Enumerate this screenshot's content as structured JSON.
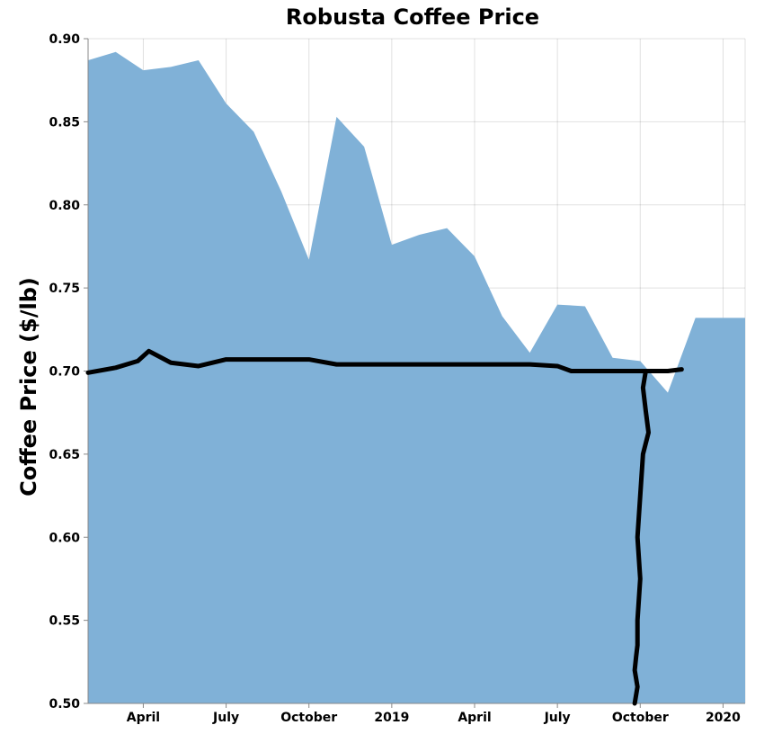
{
  "chart_data": {
    "type": "area",
    "title": "Robusta Coffee Price",
    "xlabel": "",
    "ylabel": "Coffee Price ($/lb)",
    "ylim": [
      0.5,
      0.9
    ],
    "xlim": [
      0,
      23.8
    ],
    "x_tick_labels": [
      {
        "x": 2,
        "label": "April"
      },
      {
        "x": 5,
        "label": "July"
      },
      {
        "x": 8,
        "label": "October"
      },
      {
        "x": 11,
        "label": "2019"
      },
      {
        "x": 14,
        "label": "April"
      },
      {
        "x": 17,
        "label": "July"
      },
      {
        "x": 20,
        "label": "October"
      },
      {
        "x": 23,
        "label": "2020"
      }
    ],
    "y_ticks": [
      0.5,
      0.55,
      0.6,
      0.65,
      0.7,
      0.75,
      0.8,
      0.85,
      0.9
    ],
    "area_color": "#80b1d7",
    "annotation_color": "#000000",
    "series": [
      {
        "name": "Robusta Coffee Price",
        "x": [
          0,
          1,
          2,
          3,
          4,
          5,
          6,
          7,
          8,
          9,
          10,
          11,
          12,
          13,
          14,
          15,
          16,
          17,
          18,
          19,
          20,
          21,
          22,
          23
        ],
        "values": [
          0.887,
          0.892,
          0.881,
          0.883,
          0.887,
          0.861,
          0.844,
          0.808,
          0.767,
          0.853,
          0.835,
          0.776,
          0.782,
          0.786,
          0.769,
          0.733,
          0.711,
          0.74,
          0.739,
          0.708,
          0.706,
          0.687,
          0.732,
          0.732
        ]
      }
    ],
    "annotation_stroke": {
      "description": "hand-drawn black stroke",
      "horizontal": {
        "x": [
          0,
          1,
          1.8,
          2.2,
          3,
          4,
          5,
          6,
          7,
          8,
          9,
          10,
          11,
          12,
          13,
          14,
          15,
          16,
          17,
          17.5,
          18,
          19,
          20,
          21,
          21.5
        ],
        "y": [
          0.699,
          0.702,
          0.706,
          0.712,
          0.705,
          0.703,
          0.707,
          0.707,
          0.707,
          0.707,
          0.704,
          0.704,
          0.704,
          0.704,
          0.704,
          0.704,
          0.704,
          0.704,
          0.703,
          0.7,
          0.7,
          0.7,
          0.7,
          0.7,
          0.701
        ]
      },
      "vertical": {
        "x": [
          20.2,
          20.1,
          20.2,
          20.3,
          20.1,
          20.0,
          19.9,
          20.0,
          19.9,
          19.9,
          19.85,
          19.8,
          19.9,
          19.8
        ],
        "y": [
          0.7,
          0.69,
          0.676,
          0.663,
          0.65,
          0.625,
          0.6,
          0.575,
          0.55,
          0.535,
          0.528,
          0.52,
          0.51,
          0.5
        ]
      }
    }
  }
}
